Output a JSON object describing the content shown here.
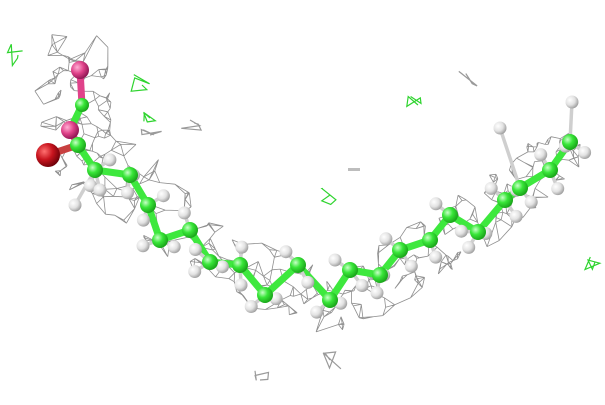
{
  "scene": {
    "type": "molecular-structure-render",
    "background_color": "#ffffff",
    "mesh_color": "#8f8f8f",
    "bond_color": "#3ee83e",
    "carbon_color": "#39e639",
    "hydrogen_color": "#e6e6e6",
    "oxygen_color": "#c8141e",
    "polar_color": "#e0428a",
    "noise_mesh_color": "#2fd42f",
    "icons": [
      "density-mesh-icon",
      "ball-and-stick-icon"
    ]
  }
}
